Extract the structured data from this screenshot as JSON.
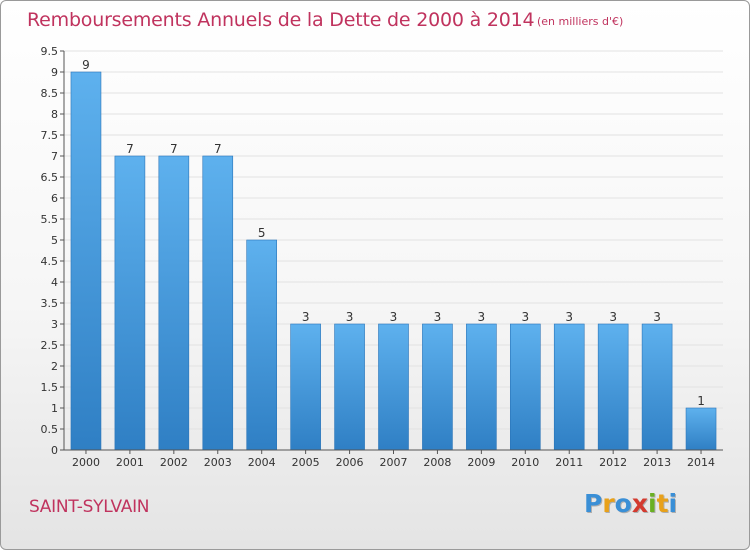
{
  "chart_data": {
    "type": "bar",
    "title": "Remboursements Annuels de la Dette de 2000 à 2014",
    "subtitle": "(en milliers d'€)",
    "categories": [
      "2000",
      "2001",
      "2002",
      "2003",
      "2004",
      "2005",
      "2006",
      "2007",
      "2008",
      "2009",
      "2010",
      "2011",
      "2012",
      "2013",
      "2014"
    ],
    "values": [
      9,
      7,
      7,
      7,
      5,
      3,
      3,
      3,
      3,
      3,
      3,
      3,
      3,
      3,
      1
    ],
    "value_labels": [
      "9",
      "7",
      "7",
      "7",
      "5",
      "3",
      "3",
      "3",
      "3",
      "3",
      "3",
      "3",
      "3",
      "3",
      "1"
    ],
    "ylim": [
      0,
      9.5
    ],
    "yticks": [
      "0",
      "0.5",
      "1",
      "1.5",
      "2",
      "2.5",
      "3",
      "3.5",
      "4",
      "4.5",
      "5",
      "5.5",
      "6",
      "6.5",
      "7",
      "7.5",
      "8",
      "8.5",
      "9",
      "9.5"
    ],
    "grid": true,
    "bar_color": "#4a9fe0"
  },
  "footer": {
    "town": "SAINT-SYLVAIN",
    "logo_letters": [
      "P",
      "r",
      "o",
      "x",
      "i",
      "t",
      "i"
    ],
    "logo_colors": [
      "#3a8fd6",
      "#e8a11a",
      "#3a8fd6",
      "#d33a2f",
      "#6ab023",
      "#e8a11a",
      "#3a8fd6"
    ]
  }
}
